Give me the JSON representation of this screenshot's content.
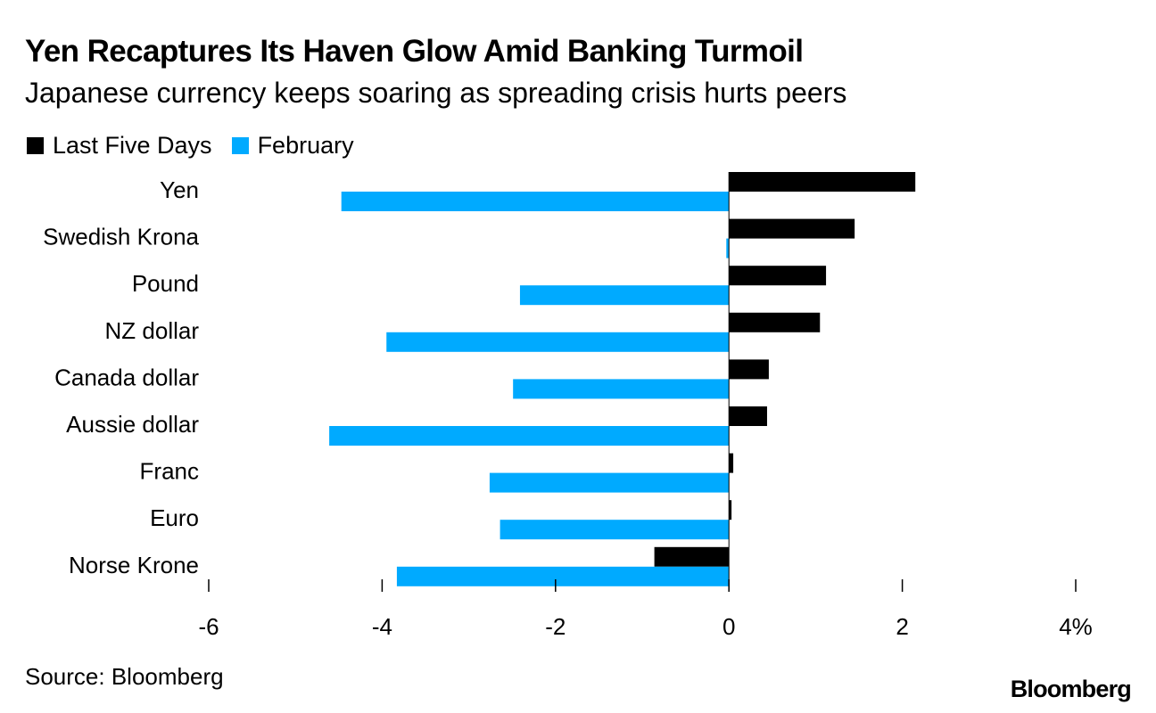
{
  "header": {
    "title": "Yen Recaptures Its Haven Glow Amid Banking Turmoil",
    "subtitle": "Japanese currency keeps soaring as spreading crisis hurts peers"
  },
  "legend": {
    "series_1": "Last Five Days",
    "series_2": "February"
  },
  "footer": {
    "source": "Source: Bloomberg",
    "brand": "Bloomberg"
  },
  "colors": {
    "last_five_days": "#000000",
    "february": "#00aaff"
  },
  "chart_data": {
    "type": "bar",
    "orientation": "horizontal",
    "title": "Yen Recaptures Its Haven Glow Amid Banking Turmoil",
    "subtitle": "Japanese currency keeps soaring as spreading crisis hurts peers",
    "categories": [
      "Yen",
      "Swedish Krona",
      "Pound",
      "NZ dollar",
      "Canada dollar",
      "Aussie dollar",
      "Franc",
      "Euro",
      "Norse Krone"
    ],
    "series": [
      {
        "name": "Last Five Days",
        "color": "#000000",
        "values": [
          2.15,
          1.45,
          1.12,
          1.05,
          0.46,
          0.44,
          0.05,
          0.03,
          -0.86
        ]
      },
      {
        "name": "February",
        "color": "#00aaff",
        "values": [
          -4.47,
          -0.03,
          -2.41,
          -3.95,
          -2.49,
          -4.61,
          -2.76,
          -2.64,
          -3.83
        ]
      }
    ],
    "xlim": [
      -6,
      4
    ],
    "x_ticks": [
      -6,
      -4,
      -2,
      0,
      2,
      4
    ],
    "x_tick_labels": [
      "-6",
      "-4",
      "-2",
      "0",
      "2",
      "4%"
    ],
    "xlabel": "",
    "ylabel": "",
    "legend_position": "top-left",
    "grid": false
  }
}
